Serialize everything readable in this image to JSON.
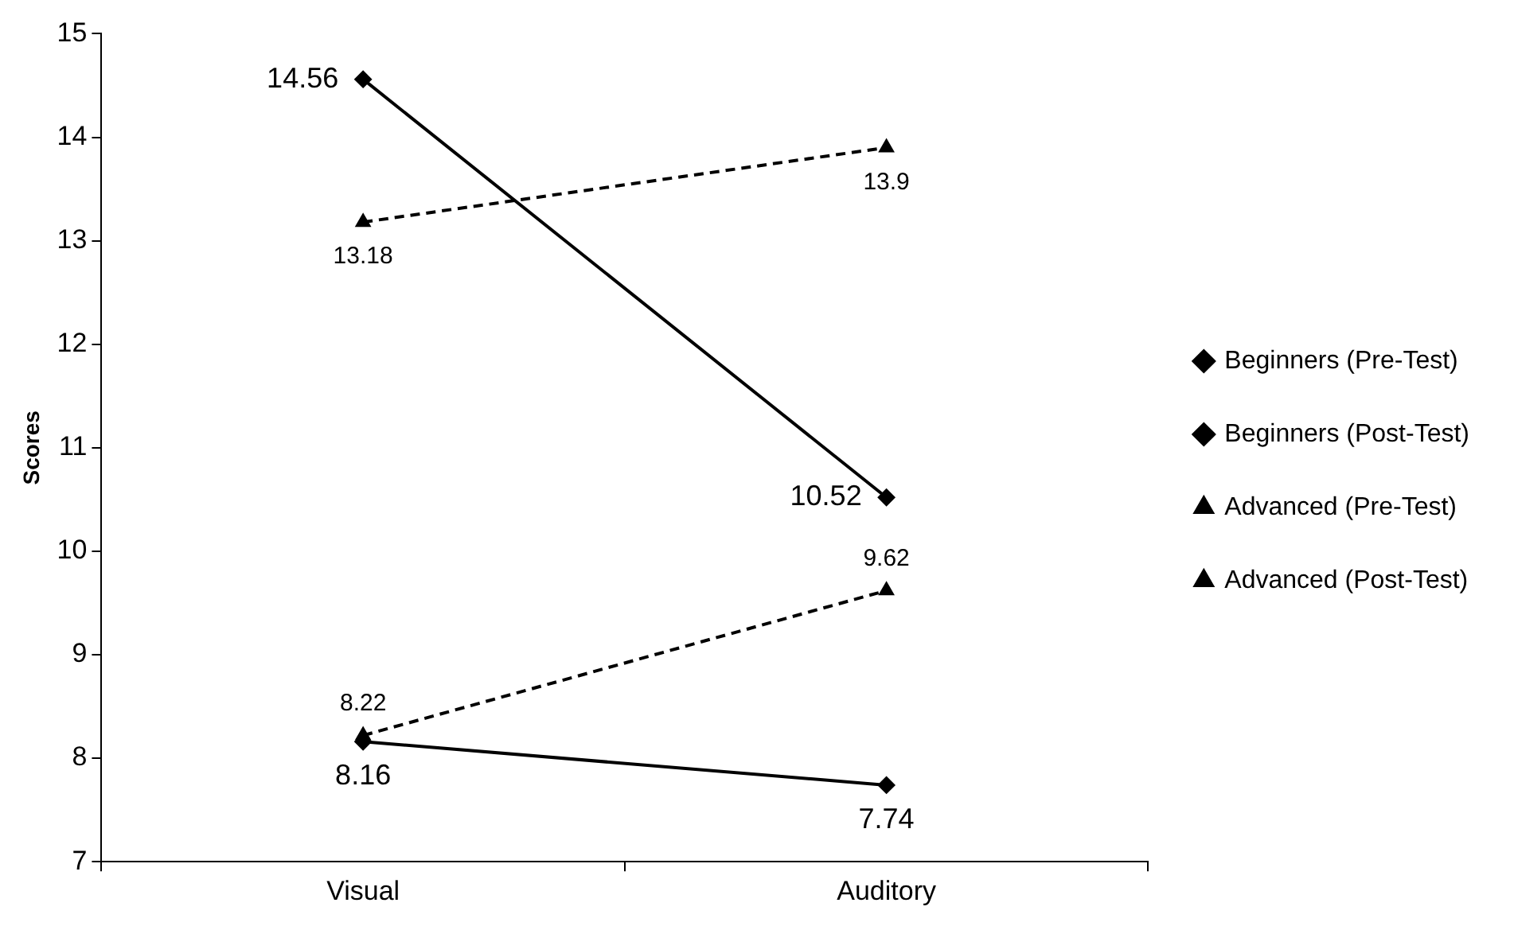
{
  "chart_data": {
    "type": "line",
    "ylabel": "Scores",
    "categories": [
      "Visual",
      "Auditory"
    ],
    "series": [
      {
        "name": "Beginners (Pre-Test)",
        "color": "#000000",
        "values": [
          8.16,
          7.74
        ],
        "marker": "diamond",
        "line_style": "solid"
      },
      {
        "name": "Beginners (Post-Test)",
        "color": "#000000",
        "values": [
          14.56,
          10.52
        ],
        "marker": "diamond",
        "line_style": "solid"
      },
      {
        "name": "Advanced (Pre-Test)",
        "color": "#000000",
        "values": [
          8.22,
          9.62
        ],
        "marker": "triangle",
        "line_style": "dashed"
      },
      {
        "name": "Advanced (Post-Test)",
        "color": "#000000",
        "values": [
          13.18,
          13.9
        ],
        "marker": "triangle",
        "line_style": "dashed"
      }
    ],
    "ylim": [
      7,
      15
    ],
    "yticks": [
      7,
      8,
      9,
      10,
      11,
      12,
      13,
      14,
      15
    ],
    "grid": false,
    "legend": "right",
    "data_labels": true
  }
}
